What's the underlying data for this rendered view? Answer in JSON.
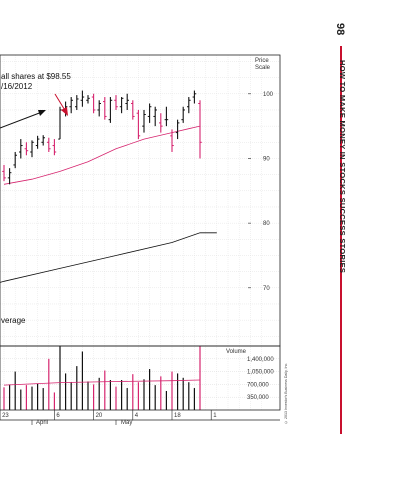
{
  "page": {
    "number": "98",
    "title": "HOW TO MAKE MONEY IN STOCKS SUCCESS STORIES",
    "accent_color": "#c8102e",
    "copyright": "© 2013 Investor's Business Daily, Inc."
  },
  "chart_data": {
    "type": "bar",
    "subtype": "ohlc-price-volume",
    "price_axis": {
      "label": "Price Scale",
      "ticks": [
        100,
        90,
        80,
        70
      ],
      "ylim": [
        61,
        106
      ]
    },
    "volume_axis": {
      "label": "Volume",
      "ticks": [
        "1,400,000",
        "1,050,000",
        "700,000",
        "350,000"
      ],
      "tick_values": [
        1400000,
        1050000,
        700000,
        350000
      ],
      "ylim": [
        0,
        1750000
      ]
    },
    "x_axis": {
      "day_labels": [
        "23",
        "6",
        "20",
        "4",
        "18",
        "1"
      ],
      "month_labels": [
        "April",
        "May"
      ]
    },
    "annotations": {
      "sell_text_line1": "all shares at $98.55",
      "sell_text_line2": "/16/2012",
      "moving_average_label": "verage"
    },
    "colors": {
      "up": "#111111",
      "down": "#d6246e",
      "ma_short": "#d6246e",
      "ma_long": "#111111"
    },
    "bars": [
      {
        "x": 0,
        "o": 88.0,
        "h": 89.0,
        "l": 86.5,
        "c": 87.0
      },
      {
        "x": 1,
        "o": 87.0,
        "h": 88.5,
        "l": 86.0,
        "c": 87.8
      },
      {
        "x": 2,
        "o": 89.0,
        "h": 91.0,
        "l": 88.5,
        "c": 90.5
      },
      {
        "x": 3,
        "o": 91.0,
        "h": 93.0,
        "l": 90.0,
        "c": 92.0
      },
      {
        "x": 4,
        "o": 91.5,
        "h": 92.5,
        "l": 90.5,
        "c": 91.2
      },
      {
        "x": 5,
        "o": 91.0,
        "h": 92.8,
        "l": 90.2,
        "c": 92.5
      },
      {
        "x": 6,
        "o": 92.0,
        "h": 93.5,
        "l": 91.5,
        "c": 93.0
      },
      {
        "x": 7,
        "o": 92.5,
        "h": 93.6,
        "l": 92.0,
        "c": 93.2
      },
      {
        "x": 8,
        "o": 92.5,
        "h": 93.2,
        "l": 91.0,
        "c": 91.5
      },
      {
        "x": 9,
        "o": 92.0,
        "h": 93.0,
        "l": 90.5,
        "c": 91.0
      },
      {
        "x": 10,
        "o": 93.0,
        "h": 98.0,
        "l": 93.0,
        "c": 97.5
      },
      {
        "x": 11,
        "o": 97.5,
        "h": 98.8,
        "l": 96.5,
        "c": 98.0
      },
      {
        "x": 12,
        "o": 98.0,
        "h": 99.5,
        "l": 97.0,
        "c": 99.0
      },
      {
        "x": 13,
        "o": 98.0,
        "h": 99.8,
        "l": 97.5,
        "c": 99.2
      },
      {
        "x": 14,
        "o": 99.0,
        "h": 100.5,
        "l": 98.0,
        "c": 99.5
      },
      {
        "x": 15,
        "o": 99.0,
        "h": 99.8,
        "l": 98.5,
        "c": 99.3
      },
      {
        "x": 16,
        "o": 99.5,
        "h": 100.0,
        "l": 97.0,
        "c": 97.5
      },
      {
        "x": 17,
        "o": 97.5,
        "h": 99.0,
        "l": 96.5,
        "c": 98.5
      },
      {
        "x": 18,
        "o": 98.8,
        "h": 99.5,
        "l": 96.0,
        "c": 96.5
      },
      {
        "x": 19,
        "o": 96.0,
        "h": 99.5,
        "l": 95.5,
        "c": 99.0
      },
      {
        "x": 20,
        "o": 99.0,
        "h": 99.8,
        "l": 97.5,
        "c": 98.0
      },
      {
        "x": 21,
        "o": 98.0,
        "h": 99.5,
        "l": 97.0,
        "c": 99.3
      },
      {
        "x": 22,
        "o": 98.5,
        "h": 100.0,
        "l": 97.5,
        "c": 99.0
      },
      {
        "x": 23,
        "o": 98.5,
        "h": 99.0,
        "l": 96.0,
        "c": 96.5
      },
      {
        "x": 24,
        "o": 97.0,
        "h": 97.5,
        "l": 93.0,
        "c": 93.5
      },
      {
        "x": 25,
        "o": 95.0,
        "h": 97.5,
        "l": 94.0,
        "c": 96.8
      },
      {
        "x": 26,
        "o": 96.5,
        "h": 98.5,
        "l": 95.5,
        "c": 98.0
      },
      {
        "x": 27,
        "o": 96.5,
        "h": 98.0,
        "l": 95.0,
        "c": 97.5
      },
      {
        "x": 28,
        "o": 95.5,
        "h": 97.0,
        "l": 94.0,
        "c": 95.0
      },
      {
        "x": 29,
        "o": 96.0,
        "h": 98.0,
        "l": 95.0,
        "c": 96.0
      },
      {
        "x": 30,
        "o": 93.5,
        "h": 94.5,
        "l": 91.0,
        "c": 92.0
      },
      {
        "x": 31,
        "o": 94.0,
        "h": 96.0,
        "l": 93.0,
        "c": 95.5
      },
      {
        "x": 32,
        "o": 96.0,
        "h": 98.0,
        "l": 95.5,
        "c": 97.5
      },
      {
        "x": 33,
        "o": 98.0,
        "h": 99.5,
        "l": 97.0,
        "c": 99.0
      },
      {
        "x": 34,
        "o": 99.5,
        "h": 100.5,
        "l": 98.5,
        "c": 100.0
      },
      {
        "x": 35,
        "o": 98.5,
        "h": 99.0,
        "l": 90.0,
        "c": 92.5
      }
    ],
    "ma_short": [
      [
        0,
        86.0
      ],
      [
        5,
        86.8
      ],
      [
        10,
        88.0
      ],
      [
        15,
        89.5
      ],
      [
        20,
        91.5
      ],
      [
        25,
        93.0
      ],
      [
        30,
        94.0
      ],
      [
        33,
        94.6
      ],
      [
        35,
        95.0
      ]
    ],
    "ma_long": [
      [
        -10,
        68.5
      ],
      [
        0,
        71.0
      ],
      [
        10,
        73.0
      ],
      [
        20,
        75.0
      ],
      [
        30,
        77.0
      ],
      [
        35,
        78.5
      ],
      [
        38,
        78.5
      ]
    ],
    "volume": [
      620000,
      700000,
      1050000,
      560000,
      680000,
      640000,
      720000,
      600000,
      1400000,
      480000,
      1750000,
      1000000,
      760000,
      1200000,
      1600000,
      780000,
      700000,
      880000,
      1080000,
      820000,
      640000,
      820000,
      600000,
      980000,
      760000,
      840000,
      1120000,
      680000,
      920000,
      520000,
      1050000,
      1000000,
      880000,
      760000,
      600000,
      1750000
    ],
    "volume_ma": [
      [
        0,
        680000
      ],
      [
        10,
        750000
      ],
      [
        20,
        780000
      ],
      [
        30,
        800000
      ],
      [
        35,
        820000
      ]
    ]
  }
}
